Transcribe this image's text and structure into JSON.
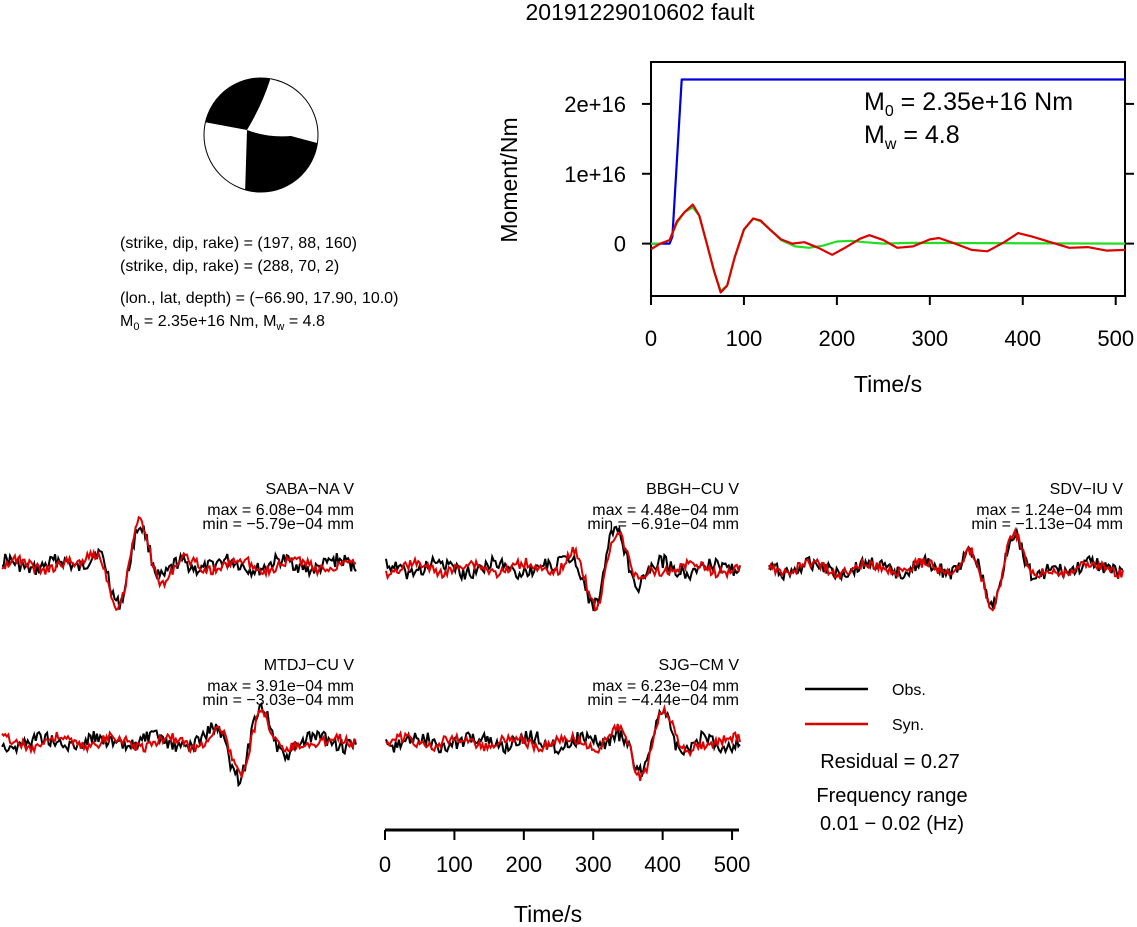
{
  "title": "20191229010602 fault",
  "beachball": {
    "nodal_plane_1": "(strike, dip, rake) = (197, 88, 160)",
    "nodal_plane_2": "(strike, dip, rake) = (288, 70, 2)",
    "location": "(lon., lat, depth) = (−66.90, 17.90, 10.0)",
    "moment_prefix": "M",
    "moment_sub": "0",
    "moment_mid": " = 2.35e+16 Nm, M",
    "moment_sub2": "w",
    "moment_suffix": " = 4.8"
  },
  "moment_annotation": {
    "m0_main": "M",
    "m0_sub": "0",
    "m0_value": " = 2.35e+16 Nm",
    "mw_main": "M",
    "mw_sub": "w",
    "mw_value": " = 4.8"
  },
  "colors": {
    "cumulative_moment": "#0000dd",
    "observed": "#000000",
    "synthetic": "#dd0000",
    "moment_rate_fit": "#22dd22"
  },
  "chart_data": [
    {
      "type": "line",
      "title": "",
      "xlabel": "Time/s",
      "ylabel": "Moment/Nm",
      "xlim": [
        0,
        510
      ],
      "ylim": [
        -7500000000000000.0,
        2.6e+16
      ],
      "x_ticks": [
        0,
        100,
        200,
        300,
        400,
        500
      ],
      "x_tick_labels": [
        "0",
        "100",
        "200",
        "300",
        "400",
        "500"
      ],
      "y_ticks": [
        0,
        1e+16,
        2e+16
      ],
      "y_tick_labels": [
        "0",
        "1e+16",
        "2e+16"
      ],
      "series": [
        {
          "color_key": "cumulative_moment",
          "points": [
            [
              0,
              0
            ],
            [
              20,
              0
            ],
            [
              23,
              1000000000000000.0
            ],
            [
              33,
              2.35e+16
            ],
            [
              510,
              2.35e+16
            ]
          ]
        },
        {
          "color_key": "moment_rate_fit",
          "points": [
            [
              0,
              0
            ],
            [
              10,
              0
            ],
            [
              20,
              500000000000000.0
            ],
            [
              28,
              3000000000000000.0
            ],
            [
              36,
              4500000000000000.0
            ],
            [
              45,
              5200000000000000.0
            ],
            [
              52,
              4000000000000000.0
            ],
            [
              60,
              0
            ],
            [
              68,
              -4000000000000000.0
            ],
            [
              75,
              -6800000000000000.0
            ],
            [
              82,
              -6000000000000000.0
            ],
            [
              90,
              -2000000000000000.0
            ],
            [
              100,
              2000000000000000.0
            ],
            [
              110,
              3600000000000000.0
            ],
            [
              118,
              3200000000000000.0
            ],
            [
              128,
              2000000000000000.0
            ],
            [
              140,
              500000000000000.0
            ],
            [
              155,
              -400000000000000.0
            ],
            [
              170,
              -600000000000000.0
            ],
            [
              185,
              -300000000000000.0
            ],
            [
              200,
              300000000000000.0
            ],
            [
              215,
              400000000000000.0
            ],
            [
              230,
              200000000000000.0
            ],
            [
              250,
              0
            ],
            [
              280,
              100000000000000.0
            ],
            [
              510,
              0
            ]
          ]
        },
        {
          "color_key": "synthetic",
          "points": [
            [
              0,
              -800000000000000.0
            ],
            [
              10,
              0
            ],
            [
              20,
              500000000000000.0
            ],
            [
              28,
              3200000000000000.0
            ],
            [
              36,
              4500000000000000.0
            ],
            [
              45,
              5600000000000000.0
            ],
            [
              52,
              4000000000000000.0
            ],
            [
              60,
              0
            ],
            [
              68,
              -4000000000000000.0
            ],
            [
              75,
              -7000000000000000.0
            ],
            [
              82,
              -6000000000000000.0
            ],
            [
              90,
              -2000000000000000.0
            ],
            [
              100,
              2000000000000000.0
            ],
            [
              110,
              3600000000000000.0
            ],
            [
              118,
              3300000000000000.0
            ],
            [
              128,
              2000000000000000.0
            ],
            [
              140,
              600000000000000.0
            ],
            [
              152,
              0
            ],
            [
              165,
              200000000000000.0
            ],
            [
              180,
              -600000000000000.0
            ],
            [
              195,
              -1600000000000000.0
            ],
            [
              210,
              -500000000000000.0
            ],
            [
              225,
              700000000000000.0
            ],
            [
              235,
              1200000000000000.0
            ],
            [
              250,
              500000000000000.0
            ],
            [
              265,
              -600000000000000.0
            ],
            [
              282,
              -400000000000000.0
            ],
            [
              300,
              600000000000000.0
            ],
            [
              310,
              800000000000000.0
            ],
            [
              325,
              100000000000000.0
            ],
            [
              345,
              -900000000000000.0
            ],
            [
              362,
              -1100000000000000.0
            ],
            [
              380,
              200000000000000.0
            ],
            [
              395,
              1500000000000000.0
            ],
            [
              410,
              1000000000000000.0
            ],
            [
              430,
              200000000000000.0
            ],
            [
              450,
              -600000000000000.0
            ],
            [
              470,
              -500000000000000.0
            ],
            [
              490,
              -1000000000000000.0
            ],
            [
              510,
              -900000000000000.0
            ]
          ]
        }
      ]
    }
  ],
  "stations": [
    {
      "name": "SABA−NA V",
      "max": "max = 6.08e−04 mm",
      "min": "min = −5.79e−04 mm"
    },
    {
      "name": "BBGH−CU V",
      "max": "max = 4.48e−04 mm",
      "min": "min = −6.91e−04 mm"
    },
    {
      "name": "SDV−IU V",
      "max": "max = 1.24e−04 mm",
      "min": "min = −1.13e−04 mm"
    },
    {
      "name": "MTDJ−CU V",
      "max": "max = 3.91e−04 mm",
      "min": "min = −3.03e−04 mm"
    },
    {
      "name": "SJG−CM V",
      "max": "max = 6.23e−04 mm",
      "min": "min = −4.44e−04 mm"
    }
  ],
  "waveform_axis": {
    "xlabel": "Time/s",
    "x_tick_labels": [
      "0",
      "100",
      "200",
      "300",
      "400",
      "500"
    ]
  },
  "legend": {
    "observed": "Obs.",
    "synthetic": "Syn.",
    "residual": "Residual = 0.27",
    "freq_label": "Frequency range",
    "freq_value": "0.01 − 0.02 (Hz)"
  }
}
